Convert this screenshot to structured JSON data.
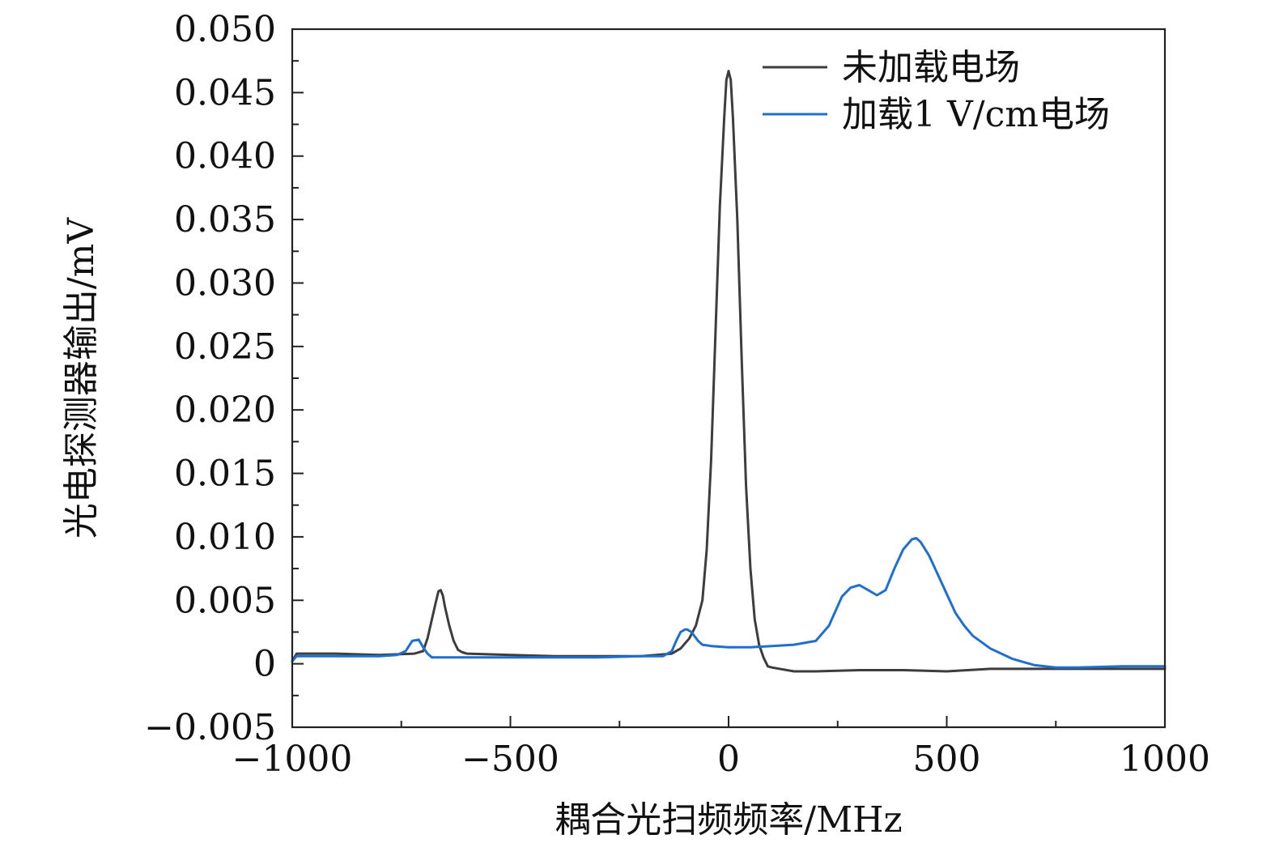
{
  "chart_data": {
    "type": "line",
    "xlabel": "耦合光扫频频率/MHz",
    "ylabel": "光电探测器输出/mV",
    "xlim": [
      -1000,
      1000
    ],
    "ylim": [
      -0.005,
      0.05
    ],
    "x_ticks": [
      {
        "value": -1000,
        "label": "−1000"
      },
      {
        "value": -500,
        "label": "−500"
      },
      {
        "value": 0,
        "label": "0"
      },
      {
        "value": 500,
        "label": "500"
      },
      {
        "value": 1000,
        "label": "1000"
      }
    ],
    "y_ticks": [
      {
        "value": -0.005,
        "label": "−0.005"
      },
      {
        "value": 0,
        "label": "0"
      },
      {
        "value": 0.005,
        "label": "0.005"
      },
      {
        "value": 0.01,
        "label": "0.010"
      },
      {
        "value": 0.015,
        "label": "0.015"
      },
      {
        "value": 0.02,
        "label": "0.020"
      },
      {
        "value": 0.025,
        "label": "0.025"
      },
      {
        "value": 0.03,
        "label": "0.030"
      },
      {
        "value": 0.035,
        "label": "0.035"
      },
      {
        "value": 0.04,
        "label": "0.040"
      },
      {
        "value": 0.045,
        "label": "0.045"
      },
      {
        "value": 0.05,
        "label": "0.050"
      }
    ],
    "grid": false,
    "legend_position": "top-right",
    "series": [
      {
        "name": "未加载电场",
        "color": "#3d3d3d",
        "x": [
          -1000,
          -990,
          -900,
          -800,
          -720,
          -700,
          -690,
          -680,
          -670,
          -665,
          -660,
          -655,
          -650,
          -640,
          -630,
          -620,
          -610,
          -600,
          -500,
          -400,
          -300,
          -200,
          -130,
          -110,
          -90,
          -75,
          -60,
          -50,
          -40,
          -30,
          -20,
          -10,
          -5,
          0,
          5,
          10,
          20,
          30,
          40,
          50,
          60,
          70,
          80,
          90,
          100,
          150,
          200,
          300,
          400,
          500,
          600,
          700,
          800,
          900,
          1000
        ],
        "y": [
          0.0002,
          0.0008,
          0.0008,
          0.0007,
          0.0008,
          0.001,
          0.002,
          0.0035,
          0.005,
          0.0057,
          0.0058,
          0.0054,
          0.0045,
          0.003,
          0.0018,
          0.0011,
          0.0009,
          0.0008,
          0.0007,
          0.0006,
          0.0006,
          0.0006,
          0.0008,
          0.0012,
          0.002,
          0.003,
          0.005,
          0.009,
          0.016,
          0.026,
          0.036,
          0.043,
          0.046,
          0.0467,
          0.046,
          0.043,
          0.035,
          0.024,
          0.014,
          0.0075,
          0.0035,
          0.0015,
          0.0005,
          -0.0002,
          -0.0003,
          -0.0006,
          -0.0006,
          -0.0005,
          -0.0005,
          -0.0006,
          -0.0004,
          -0.0004,
          -0.0004,
          -0.0004,
          -0.0004
        ]
      },
      {
        "name": "加载1 V/cm电场",
        "color": "#1f6fd1",
        "x": [
          -1000,
          -990,
          -900,
          -800,
          -760,
          -740,
          -725,
          -710,
          -700,
          -690,
          -680,
          -600,
          -500,
          -400,
          -300,
          -200,
          -150,
          -130,
          -120,
          -110,
          -100,
          -95,
          -85,
          -70,
          -60,
          -40,
          0,
          50,
          100,
          150,
          200,
          230,
          260,
          280,
          300,
          320,
          340,
          360,
          380,
          400,
          420,
          430,
          440,
          460,
          480,
          500,
          520,
          540,
          560,
          600,
          650,
          700,
          750,
          800,
          900,
          1000
        ],
        "y": [
          0.0002,
          0.0006,
          0.0006,
          0.0006,
          0.0007,
          0.001,
          0.0018,
          0.0019,
          0.0013,
          0.0008,
          0.0005,
          0.0005,
          0.0005,
          0.0005,
          0.0005,
          0.0006,
          0.0006,
          0.001,
          0.0018,
          0.0025,
          0.0027,
          0.0027,
          0.0025,
          0.0018,
          0.0015,
          0.0014,
          0.0013,
          0.0013,
          0.0014,
          0.0015,
          0.0018,
          0.003,
          0.0053,
          0.006,
          0.0062,
          0.0058,
          0.0054,
          0.0058,
          0.0075,
          0.009,
          0.0098,
          0.0099,
          0.0096,
          0.0085,
          0.007,
          0.0055,
          0.004,
          0.003,
          0.0022,
          0.0012,
          0.0004,
          -0.0001,
          -0.0003,
          -0.0003,
          -0.0002,
          -0.0002
        ]
      }
    ]
  }
}
